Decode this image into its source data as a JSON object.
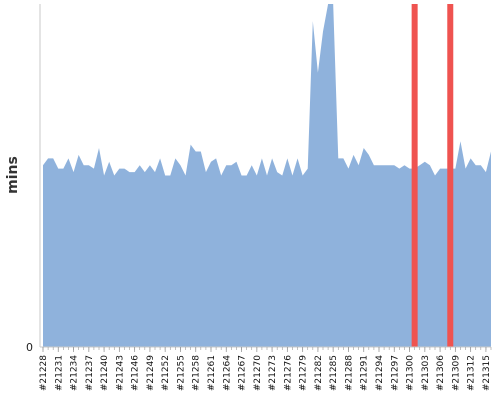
{
  "chart_data": {
    "type": "area",
    "title": "",
    "xlabel": "",
    "ylabel": "mins",
    "y_tick_labels": [
      "0"
    ],
    "ylim": [
      0,
      100
    ],
    "grid": false,
    "colors": {
      "area": "#8fb2dc",
      "marker": "#ef5350",
      "axis": "#c9c9c9",
      "tick": "#999999"
    },
    "x": [
      21228,
      21229,
      21230,
      21231,
      21232,
      21233,
      21234,
      21235,
      21236,
      21237,
      21238,
      21239,
      21240,
      21241,
      21242,
      21243,
      21244,
      21245,
      21246,
      21247,
      21248,
      21249,
      21250,
      21251,
      21252,
      21253,
      21254,
      21255,
      21256,
      21257,
      21258,
      21259,
      21260,
      21261,
      21262,
      21263,
      21264,
      21265,
      21266,
      21267,
      21268,
      21269,
      21270,
      21271,
      21272,
      21273,
      21274,
      21275,
      21276,
      21277,
      21278,
      21279,
      21280,
      21281,
      21282,
      21283,
      21284,
      21285,
      21286,
      21287,
      21288,
      21289,
      21290,
      21291,
      21292,
      21293,
      21294,
      21295,
      21296,
      21297,
      21298,
      21299,
      21300,
      21301,
      21302,
      21303,
      21304,
      21305,
      21306,
      21307,
      21308,
      21309,
      21310,
      21311,
      21312,
      21313,
      21314,
      21315,
      21316
    ],
    "x_tick_labels": [
      "#21228",
      "#21231",
      "#21234",
      "#21237",
      "#21240",
      "#21243",
      "#21246",
      "#21249",
      "#21252",
      "#21255",
      "#21258",
      "#21261",
      "#21264",
      "#21267",
      "#21270",
      "#21273",
      "#21276",
      "#21279",
      "#21282",
      "#21285",
      "#21288",
      "#21291",
      "#21294",
      "#21297",
      "#21300",
      "#21303",
      "#21306",
      "#21309",
      "#21312",
      "#21315"
    ],
    "values": [
      53,
      55,
      55,
      52,
      52,
      55,
      51,
      56,
      53,
      53,
      52,
      58,
      50,
      54,
      50,
      52,
      52,
      51,
      51,
      53,
      51,
      53,
      51,
      55,
      50,
      50,
      55,
      53,
      50,
      59,
      57,
      57,
      51,
      54,
      55,
      50,
      53,
      53,
      54,
      50,
      50,
      53,
      50,
      55,
      50,
      55,
      51,
      50,
      55,
      50,
      55,
      50,
      52,
      95,
      80,
      92,
      100,
      100,
      55,
      55,
      52,
      56,
      53,
      58,
      56,
      53,
      53,
      53,
      53,
      53,
      52,
      53,
      52,
      52,
      53,
      54,
      53,
      50,
      52,
      52,
      52,
      52,
      60,
      52,
      55,
      53,
      53,
      51,
      57
    ],
    "highlights": [
      21301,
      21308
    ]
  }
}
